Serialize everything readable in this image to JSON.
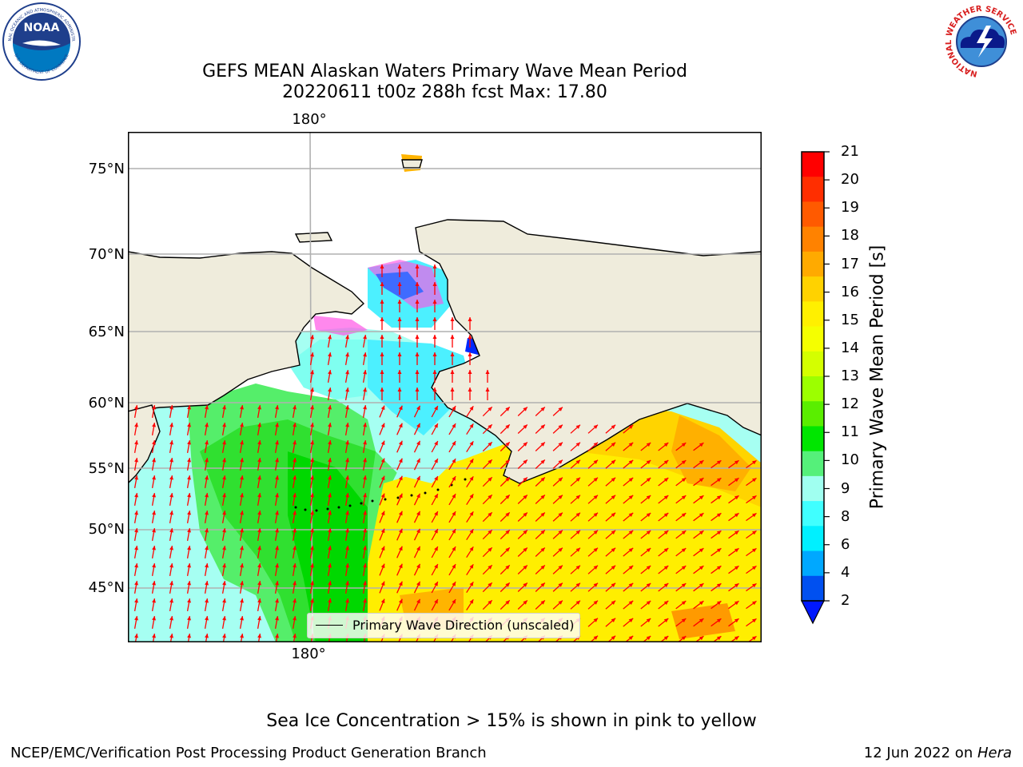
{
  "title": {
    "line1": "GEFS MEAN Alaskan Waters Primary Wave Mean Period",
    "line2": "20220611 t00z 288h fcst   Max: 17.80"
  },
  "map": {
    "lon_label_top": "180°",
    "lon_label_bottom": "180°",
    "lat_labels": [
      "75°N",
      "70°N",
      "65°N",
      "60°N",
      "55°N",
      "50°N",
      "45°N"
    ],
    "land_color": "#efecdc",
    "arrow_color": "#ff0000",
    "legend": "Primary Wave Direction (unscaled)"
  },
  "colorbar": {
    "title": "Primary Wave Mean Period [s]",
    "ticks": [
      "21",
      "20",
      "19",
      "18",
      "17",
      "16",
      "15",
      "14",
      "13",
      "12",
      "11",
      "10",
      "9",
      "8",
      "6",
      "4",
      "2"
    ],
    "colors_top_to_bottom": [
      "#ff0000",
      "#ff2e00",
      "#ff5a00",
      "#ff8200",
      "#ffaa00",
      "#ffd200",
      "#fff000",
      "#f5ff00",
      "#d4ff00",
      "#9cff00",
      "#5aee00",
      "#00e600",
      "#55f07a",
      "#a0fff0",
      "#40ffff",
      "#00f0ff",
      "#00a8ff",
      "#0050f0"
    ],
    "extend_color": "#0018ff"
  },
  "footnote": "Sea Ice Concentration > 15% is shown in pink to yellow",
  "footer": {
    "left": "NCEP/EMC/Verification Post Processing Product Generation Branch",
    "right_date": "12 Jun 2022 on ",
    "right_machine": "Hera"
  },
  "logos": {
    "noaa_text": "NOAA",
    "noaa_ring_top": "NATIONAL OCEANIC AND ATMOSPHERIC ADMINISTRATION",
    "noaa_ring_bottom": "U.S. DEPARTMENT OF COMMERCE",
    "nws_ring": "NATIONAL WEATHER SERVICE"
  }
}
